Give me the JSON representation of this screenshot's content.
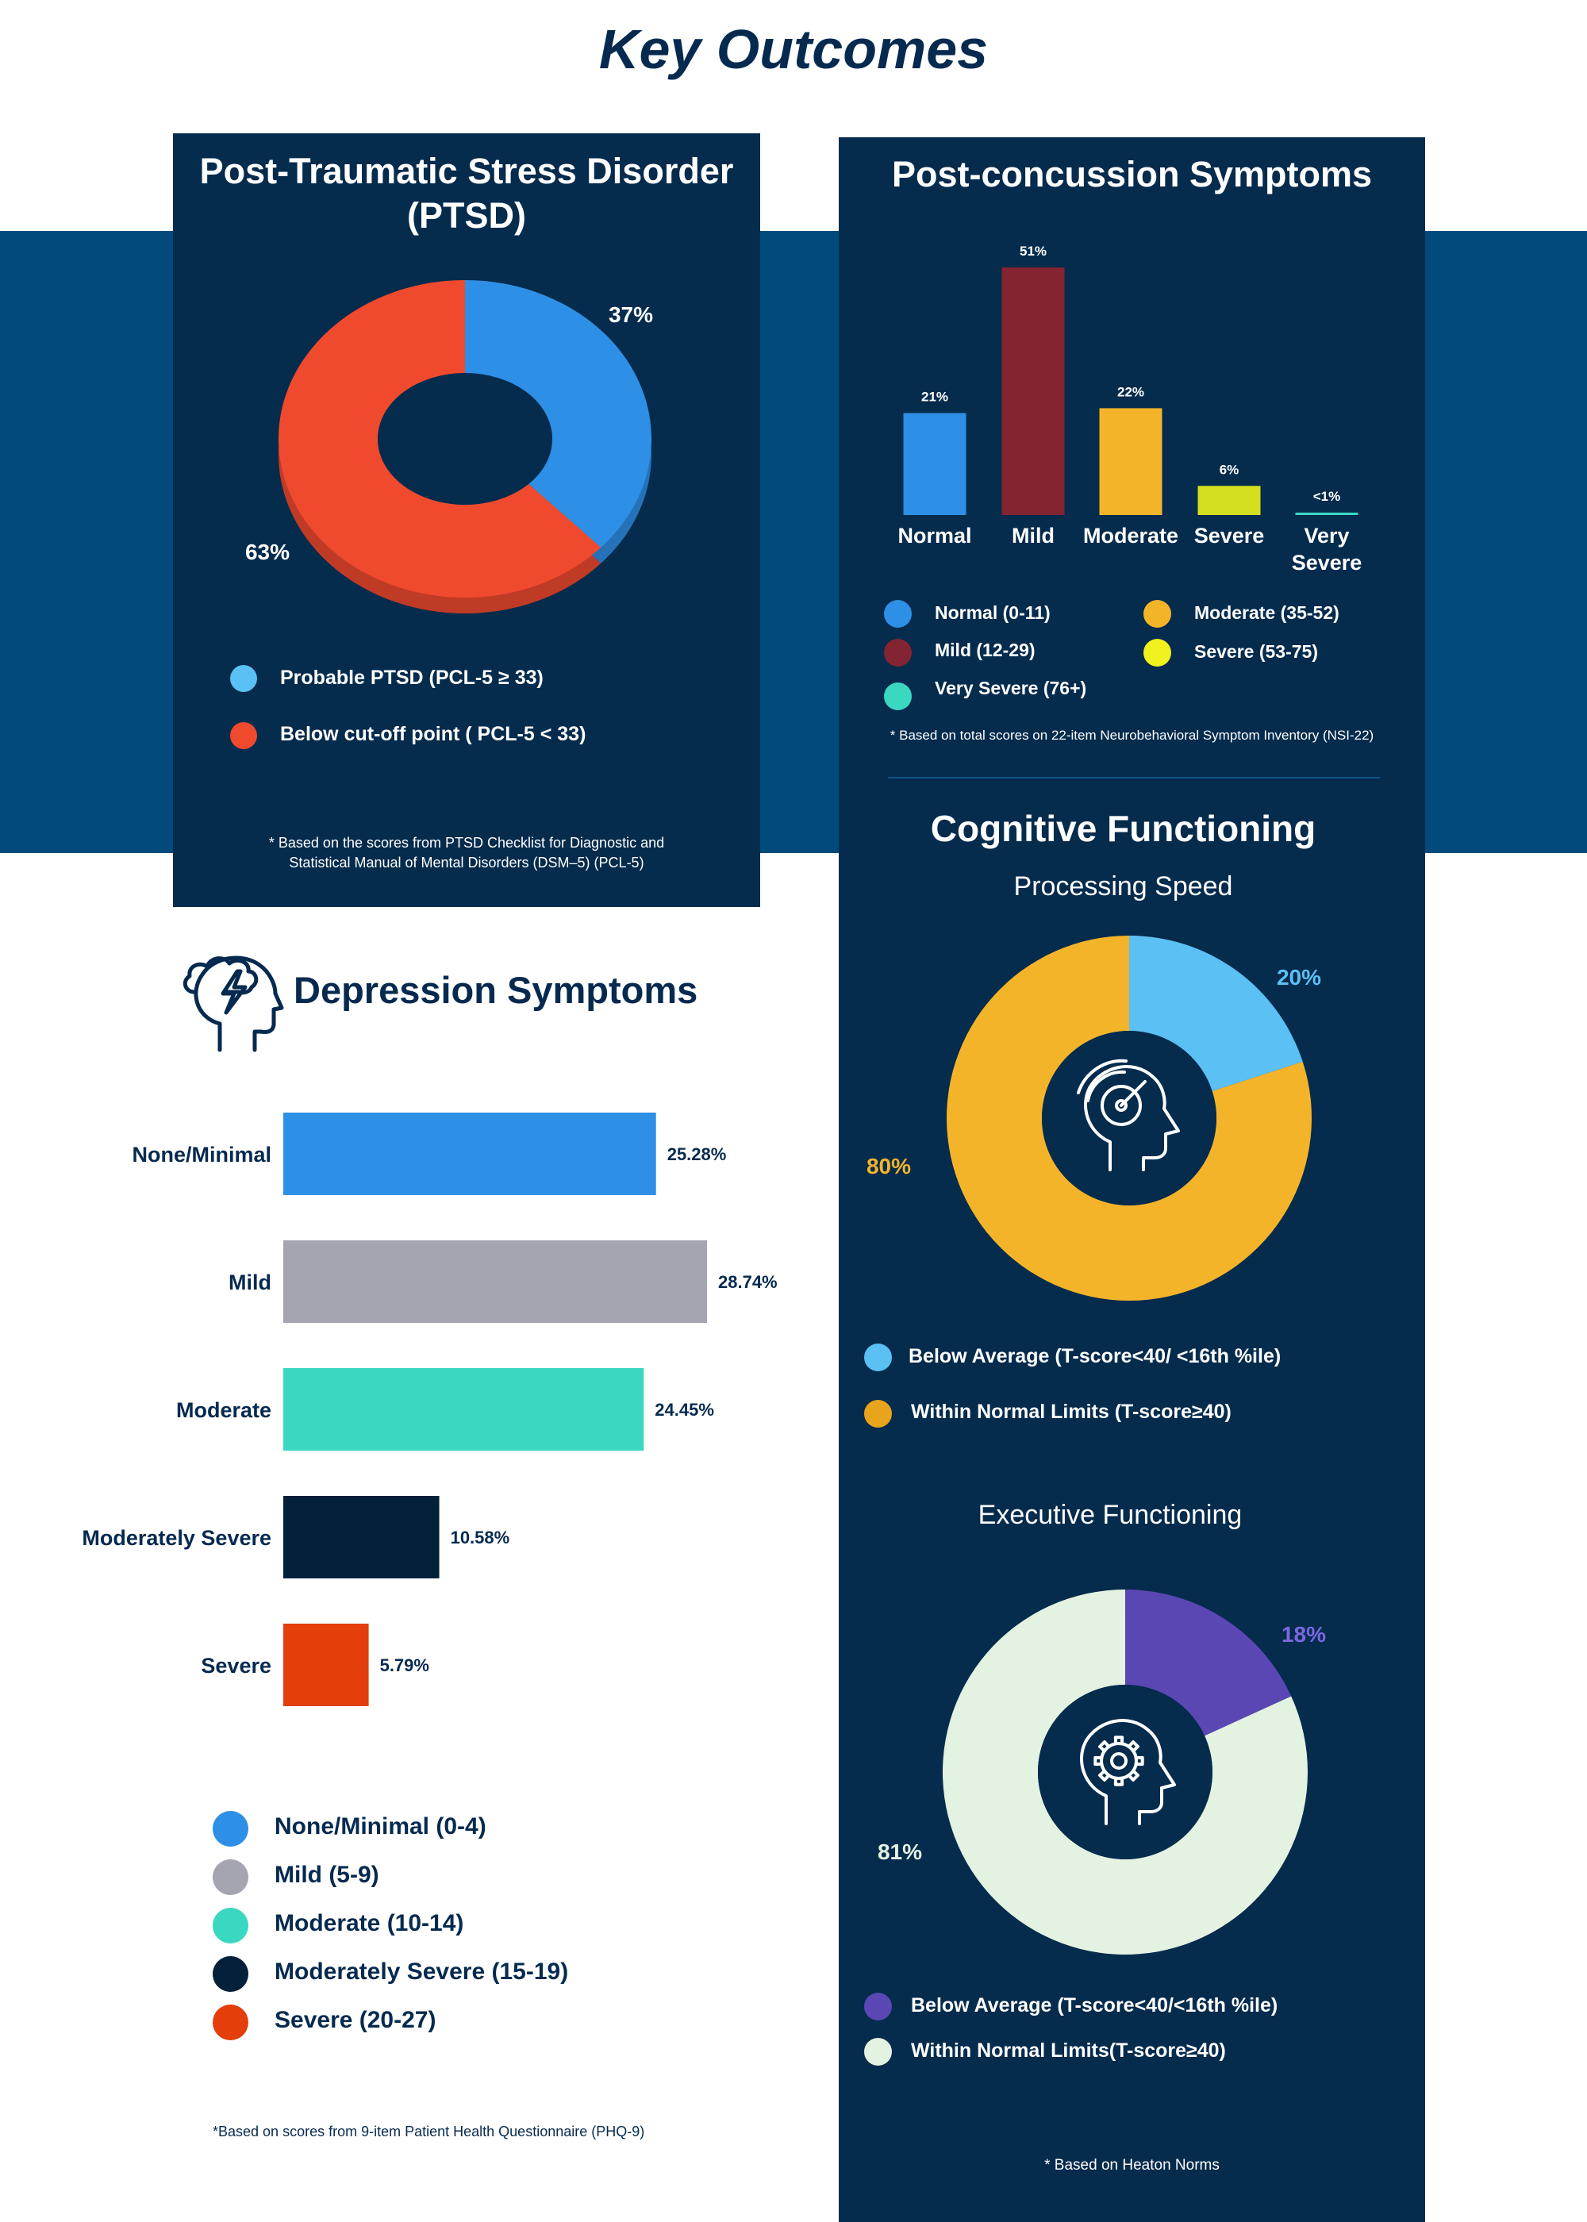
{
  "page_title": "Key Outcomes",
  "colors": {
    "navy_panel": "#052b4d",
    "band": "#004b7c",
    "title": "#062a4f"
  },
  "ptsd": {
    "title_line1": "Post-Traumatic Stress Disorder",
    "title_line2": "(PTSD)",
    "legend": [
      {
        "label": "Probable PTSD (PCL-5 ≥ 33)",
        "color": "#5bc0f4"
      },
      {
        "label": "Below cut-off point ( PCL-5 < 33)",
        "color": "#f04a2e"
      }
    ],
    "note_line1": "* Based on the scores from PTSD Checklist for Diagnostic and",
    "note_line2": "Statistical Manual of Mental Disorders (DSM–5) (PCL-5)"
  },
  "pcs": {
    "title": "Post-concussion Symptoms",
    "legend": [
      {
        "label": "Normal (0-11)",
        "color": "#2e8fe6"
      },
      {
        "label": "Moderate (35-52)",
        "color": "#f4b42a"
      },
      {
        "label": "Mild (12-29)",
        "color": "#842433"
      },
      {
        "label": "Severe (53-75)",
        "color": "#f1f11f"
      },
      {
        "label": "Very Severe (76+)",
        "color": "#3ad8c0"
      }
    ],
    "note": "* Based on total scores on 22-item Neurobehavioral Symptom Inventory (NSI-22)"
  },
  "cognitive": {
    "title": "Cognitive Functioning",
    "processing": {
      "subtitle": "Processing Speed",
      "legend": [
        {
          "label": "Below Average (T-score<40/ <16th %ile)",
          "color": "#5bc0f4"
        },
        {
          "label": "Within Normal Limits (T-score≥40)",
          "color": "#e8a41a"
        }
      ]
    },
    "executive": {
      "subtitle": "Executive Functioning",
      "legend": [
        {
          "label": "Below Average (T-score<40/<16th %ile)",
          "color": "#5a47b4"
        },
        {
          "label": "Within Normal Limits(T-score≥40)",
          "color": "#e4f2e1"
        }
      ]
    },
    "note": "* Based on Heaton Norms"
  },
  "depression": {
    "title": "Depression Symptoms",
    "legend": [
      {
        "label": "None/Minimal (0-4)",
        "color": "#2e8fe6"
      },
      {
        "label": "Mild (5-9)",
        "color": "#a5a4b1"
      },
      {
        "label": "Moderate (10-14)",
        "color": "#3ad8c0"
      },
      {
        "label": "Moderately Severe (15-19)",
        "color": "#04213b"
      },
      {
        "label": "Severe (20-27)",
        "color": "#e33e0c"
      }
    ],
    "note": "*Based on scores from 9-item Patient Health Questionnaire (PHQ-9)"
  },
  "chart_data": [
    {
      "id": "ptsd",
      "type": "pie",
      "title": "Post-Traumatic Stress Disorder (PTSD)",
      "labels": [
        "Probable PTSD (PCL-5 ≥ 33)",
        "Below cut-off point ( PCL-5 < 33)"
      ],
      "values": [
        37,
        63
      ],
      "value_labels": [
        "37%",
        "63%"
      ],
      "colors": [
        "#2e8fe6",
        "#f04a2e"
      ]
    },
    {
      "id": "pcs",
      "type": "bar",
      "title": "Post-concussion Symptoms",
      "categories": [
        "Normal",
        "Mild",
        "Moderate",
        "Severe",
        "Very Severe"
      ],
      "values": [
        21,
        51,
        22,
        6,
        0.5
      ],
      "value_labels": [
        "21%",
        "51%",
        "22%",
        "6%",
        "<1%"
      ],
      "colors": [
        "#2e8fe6",
        "#842433",
        "#f4b42a",
        "#d4df1f",
        "#3ad8c0"
      ],
      "ylim": [
        0,
        51
      ]
    },
    {
      "id": "processing",
      "type": "pie",
      "title": "Processing Speed",
      "labels": [
        "Below Average (T-score<40/ <16th %ile)",
        "Within Normal Limits (T-score≥40)"
      ],
      "values": [
        20,
        80
      ],
      "value_labels": [
        "20%",
        "80%"
      ],
      "colors": [
        "#5bc0f4",
        "#f4b42a"
      ]
    },
    {
      "id": "executive",
      "type": "pie",
      "title": "Executive Functioning",
      "labels": [
        "Below Average (T-score<40/<16th %ile)",
        "Within Normal Limits(T-score≥40)"
      ],
      "values": [
        18,
        81
      ],
      "value_labels": [
        "18%",
        "81%"
      ],
      "colors": [
        "#5a47b4",
        "#e4f2e1"
      ]
    },
    {
      "id": "depression",
      "type": "bar",
      "orientation": "horizontal",
      "title": "Depression Symptoms",
      "categories": [
        "None/Minimal",
        "Mild",
        "Moderate",
        "Moderately Severe",
        "Severe"
      ],
      "values": [
        25.28,
        28.74,
        24.45,
        10.58,
        5.79
      ],
      "value_labels": [
        "25.28%",
        "28.74%",
        "24.45%",
        "10.58%",
        "5.79%"
      ],
      "colors": [
        "#2e8fe6",
        "#a5a4b1",
        "#3ad8c0",
        "#04213b",
        "#e33e0c"
      ],
      "xlim": [
        0,
        28.74
      ]
    }
  ]
}
